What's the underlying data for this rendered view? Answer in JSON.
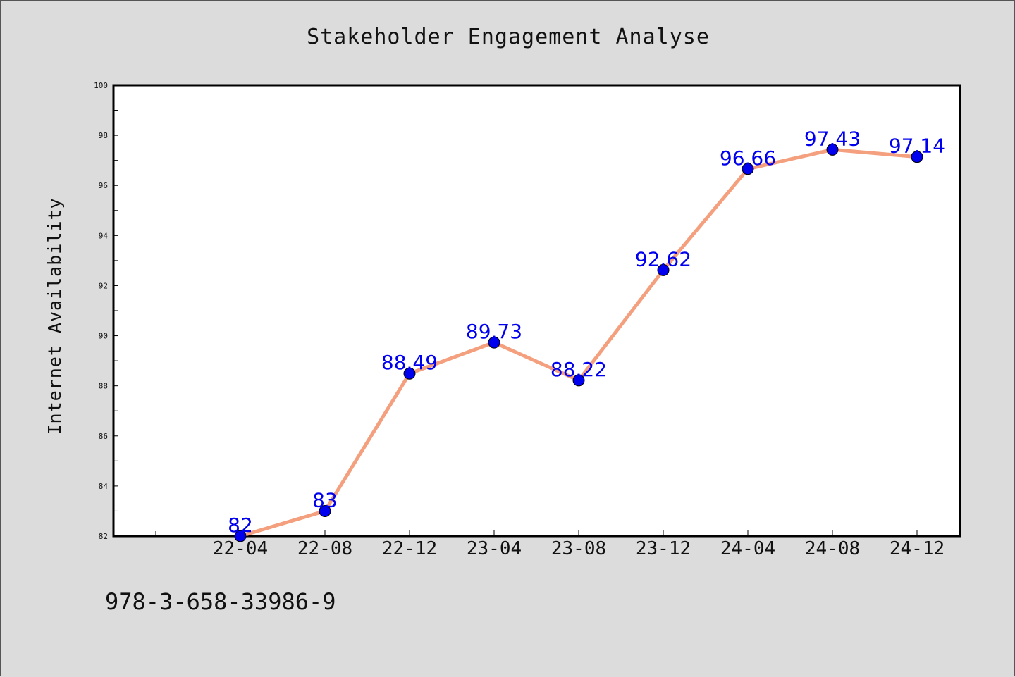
{
  "chart_data": {
    "type": "line",
    "title": "Stakeholder Engagement Analyse",
    "xlabel": "",
    "ylabel": "Internet Availability",
    "categories": [
      "22-04",
      "22-08",
      "22-12",
      "23-04",
      "23-08",
      "23-12",
      "24-04",
      "24-08",
      "24-12"
    ],
    "values": [
      82,
      83,
      88.49,
      89.73,
      88.22,
      92.62,
      96.66,
      97.43,
      97.14
    ],
    "data_labels": [
      "82",
      "83",
      "88.49",
      "89.73",
      "88.22",
      "92.62",
      "96.66",
      "97.43",
      "97.14"
    ],
    "ylim": [
      82,
      100
    ],
    "yticks": [
      82,
      84,
      86,
      88,
      90,
      92,
      94,
      96,
      98,
      100
    ],
    "grid": false,
    "line_color": "#f4a07e",
    "marker_color": "#0000ee",
    "label_color": "#0000ee"
  },
  "footer_text": "978-3-658-33986-9"
}
